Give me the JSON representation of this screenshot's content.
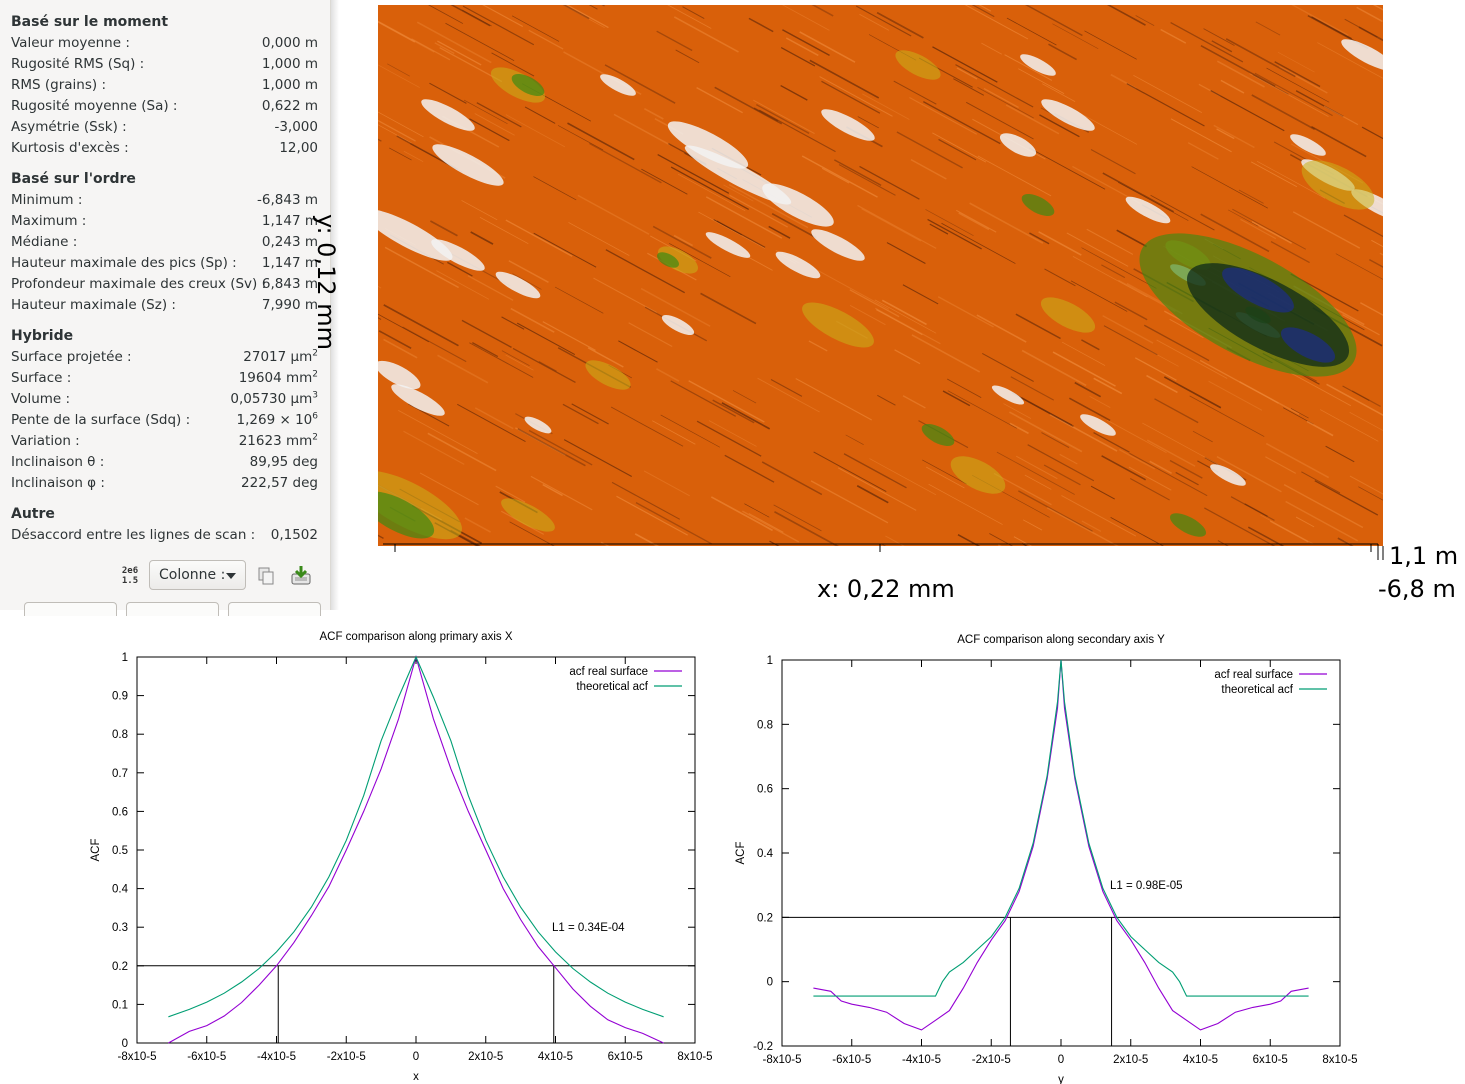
{
  "stats": {
    "sections": [
      {
        "title": "Basé sur le moment",
        "rows": [
          {
            "label": "Valeur moyenne :",
            "value": "0,000 m"
          },
          {
            "label": "Rugosité RMS (Sq) :",
            "value": "1,000 m"
          },
          {
            "label": "RMS (grains) :",
            "value": "1,000 m"
          },
          {
            "label": "Rugosité moyenne (Sa) :",
            "value": "0,622 m"
          },
          {
            "label": "Asymétrie (Ssk) :",
            "value": "-3,000"
          },
          {
            "label": "Kurtosis d'excès :",
            "value": "12,00"
          }
        ]
      },
      {
        "title": "Basé sur l'ordre",
        "rows": [
          {
            "label": "Minimum :",
            "value": "-6,843 m"
          },
          {
            "label": "Maximum :",
            "value": "1,147 m"
          },
          {
            "label": "Médiane :",
            "value": "0,243 m"
          },
          {
            "label": "Hauteur maximale des pics (Sp) :",
            "value": "1,147 m"
          },
          {
            "label": "Profondeur maximale des creux (Sv) :",
            "value": "6,843 m"
          },
          {
            "label": "Hauteur maximale (Sz) :",
            "value": "7,990 m"
          }
        ]
      },
      {
        "title": "Hybride",
        "rows": [
          {
            "label": "Surface projetée :",
            "value": "27017 µm",
            "sup": "2"
          },
          {
            "label": "Surface :",
            "value": "19604 mm",
            "sup": "2"
          },
          {
            "label": "Volume :",
            "value": "0,05730 µm",
            "sup": "3"
          },
          {
            "label": "Pente de la surface (Sdq) :",
            "value": "1,269 × 10",
            "sup": "6"
          },
          {
            "label": "Variation :",
            "value": "21623 mm",
            "sup": "2"
          },
          {
            "label": "Inclinaison θ :",
            "value": "89,95 deg"
          },
          {
            "label": "Inclinaison φ :",
            "value": "222,57 deg"
          }
        ]
      },
      {
        "title": "Autre",
        "rows": [
          {
            "label": "Désaccord entre les lignes de scan :",
            "value": "0,1502"
          }
        ]
      }
    ],
    "format_icon_top": "2e6",
    "format_icon_bottom": "1.5",
    "mode_select": "Colonne :"
  },
  "surface": {
    "y_label": "y: 0,12 mm",
    "x_label": "x: 0,22 mm",
    "z_max": "1,1 m",
    "z_min": "-6,8 m",
    "colors": {
      "orange": "#d9600a",
      "white": "#f2f2f2",
      "green": "#3f8a12",
      "yellow": "#c9b21a",
      "dark": "#0d2a1a",
      "blue": "#1a2a9c"
    }
  },
  "chart_data": [
    {
      "type": "line",
      "title": "ACF comparison along primary axis X",
      "xlabel": "x",
      "ylabel": "ACF",
      "xlim": [
        -8e-05,
        8e-05
      ],
      "ylim": [
        0,
        1
      ],
      "xticks": [
        "-8x10-5",
        "-6x10-5",
        "-4x10-5",
        "-2x10-5",
        "0",
        "2x10-5",
        "4x10-5",
        "6x10-5",
        "8x10-5"
      ],
      "yticks": [
        "0",
        "0.1",
        "0.2",
        "0.3",
        "0.4",
        "0.5",
        "0.6",
        "0.7",
        "0.8",
        "0.9",
        "1"
      ],
      "annotation": "L1 = 0.34E-04",
      "hline": 0.2,
      "vlines": [
        -3.95e-05,
        3.95e-05
      ],
      "legend_position": "top-right",
      "series": [
        {
          "name": "acf real surface",
          "color": "#9400d3",
          "x": [
            -7.1e-05,
            -6.5e-05,
            -6e-05,
            -5.5e-05,
            -5e-05,
            -4.5e-05,
            -4e-05,
            -3.5e-05,
            -3e-05,
            -2.5e-05,
            -2e-05,
            -1.5e-05,
            -1e-05,
            -5e-06,
            0,
            5e-06,
            1e-05,
            1.5e-05,
            2e-05,
            2.5e-05,
            3e-05,
            3.5e-05,
            4e-05,
            4.5e-05,
            5e-05,
            5.5e-05,
            6e-05,
            6.5e-05,
            7.1e-05
          ],
          "y": [
            0.0,
            0.03,
            0.045,
            0.07,
            0.105,
            0.15,
            0.2,
            0.26,
            0.33,
            0.405,
            0.5,
            0.6,
            0.71,
            0.84,
            1.0,
            0.84,
            0.71,
            0.6,
            0.5,
            0.4,
            0.32,
            0.25,
            0.195,
            0.14,
            0.095,
            0.06,
            0.04,
            0.025,
            0.0
          ]
        },
        {
          "name": "theoretical acf",
          "color": "#009e73",
          "x": [
            -7.1e-05,
            -6.5e-05,
            -6e-05,
            -5.5e-05,
            -5e-05,
            -4.5e-05,
            -4e-05,
            -3.5e-05,
            -3e-05,
            -2.5e-05,
            -2e-05,
            -1.5e-05,
            -1e-05,
            -5e-06,
            0,
            5e-06,
            1e-05,
            1.5e-05,
            2e-05,
            2.5e-05,
            3e-05,
            3.5e-05,
            4e-05,
            4.5e-05,
            5e-05,
            5.5e-05,
            6e-05,
            6.5e-05,
            7.1e-05
          ],
          "y": [
            0.068,
            0.087,
            0.106,
            0.129,
            0.158,
            0.193,
            0.236,
            0.288,
            0.352,
            0.43,
            0.525,
            0.641,
            0.783,
            0.896,
            1.0,
            0.896,
            0.783,
            0.641,
            0.525,
            0.43,
            0.352,
            0.288,
            0.236,
            0.193,
            0.158,
            0.129,
            0.106,
            0.087,
            0.068
          ]
        }
      ]
    },
    {
      "type": "line",
      "title": "ACF comparison along secondary axis Y",
      "xlabel": "y",
      "ylabel": "ACF",
      "xlim": [
        -8e-05,
        8e-05
      ],
      "ylim": [
        -0.2,
        1
      ],
      "xticks": [
        "-8x10-5",
        "-6x10-5",
        "-4x10-5",
        "-2x10-5",
        "0",
        "2x10-5",
        "4x10-5",
        "6x10-5",
        "8x10-5"
      ],
      "yticks": [
        "-0.2",
        "0",
        "0.2",
        "0.4",
        "0.6",
        "0.8",
        "1"
      ],
      "annotation": "L1 = 0.98E-05",
      "hline": 0.2,
      "vlines": [
        -1.45e-05,
        1.45e-05
      ],
      "legend_position": "top-right",
      "series": [
        {
          "name": "acf real surface",
          "color": "#9400d3",
          "x": [
            -7.1e-05,
            -6.6e-05,
            -6.3e-05,
            -6e-05,
            -5.5e-05,
            -5e-05,
            -4.5e-05,
            -4e-05,
            -3.6e-05,
            -3.2e-05,
            -2.8e-05,
            -2.4e-05,
            -2e-05,
            -1.6e-05,
            -1.2e-05,
            -8e-06,
            -4e-06,
            -1e-06,
            0,
            1e-06,
            4e-06,
            8e-06,
            1.2e-05,
            1.6e-05,
            2e-05,
            2.4e-05,
            2.8e-05,
            3.2e-05,
            3.6e-05,
            4e-05,
            4.5e-05,
            5e-05,
            5.5e-05,
            6e-05,
            6.3e-05,
            6.6e-05,
            7.1e-05
          ],
          "y": [
            -0.02,
            -0.03,
            -0.06,
            -0.07,
            -0.08,
            -0.095,
            -0.13,
            -0.15,
            -0.12,
            -0.09,
            -0.02,
            0.06,
            0.13,
            0.19,
            0.28,
            0.42,
            0.63,
            0.85,
            1.0,
            0.85,
            0.63,
            0.42,
            0.28,
            0.19,
            0.13,
            0.06,
            -0.02,
            -0.09,
            -0.12,
            -0.15,
            -0.13,
            -0.095,
            -0.08,
            -0.07,
            -0.06,
            -0.03,
            -0.02
          ]
        },
        {
          "name": "theoretical acf",
          "color": "#009e73",
          "x": [
            -7.1e-05,
            -6e-05,
            -5e-05,
            -4e-05,
            -3.6e-05,
            -3.4e-05,
            -3.2e-05,
            -2.8e-05,
            -2.4e-05,
            -2e-05,
            -1.6e-05,
            -1.2e-05,
            -8e-06,
            -4e-06,
            -1e-06,
            0,
            1e-06,
            4e-06,
            8e-06,
            1.2e-05,
            1.6e-05,
            2e-05,
            2.4e-05,
            2.8e-05,
            3.2e-05,
            3.4e-05,
            3.6e-05,
            4e-05,
            5e-05,
            6e-05,
            7.1e-05
          ],
          "y": [
            -0.045,
            -0.045,
            -0.045,
            -0.045,
            -0.045,
            0.0,
            0.03,
            0.06,
            0.1,
            0.14,
            0.2,
            0.29,
            0.43,
            0.64,
            0.87,
            1.0,
            0.87,
            0.64,
            0.43,
            0.29,
            0.2,
            0.14,
            0.1,
            0.06,
            0.03,
            0.0,
            -0.045,
            -0.045,
            -0.045,
            -0.045,
            -0.045
          ]
        }
      ]
    }
  ]
}
